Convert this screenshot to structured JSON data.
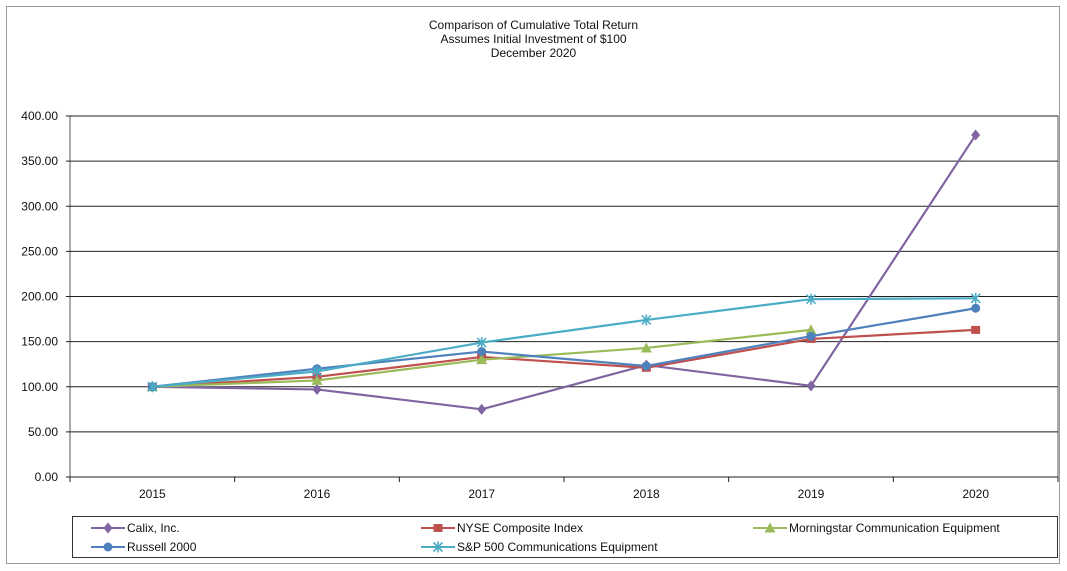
{
  "chart_data": {
    "type": "line",
    "title": [
      "Comparison of Cumulative Total Return",
      "Assumes Initial Investment of $100",
      "December 2020"
    ],
    "categories": [
      "2015",
      "2016",
      "2017",
      "2018",
      "2019",
      "2020"
    ],
    "ylim": [
      0,
      400
    ],
    "yticks": [
      "0.00",
      "50.00",
      "100.00",
      "150.00",
      "200.00",
      "250.00",
      "300.00",
      "350.00",
      "400.00"
    ],
    "grid": true,
    "legend_position": "bottom",
    "series": [
      {
        "name": "Calix, Inc.",
        "color": "#8064a2",
        "marker": "diamond",
        "values": [
          100,
          97,
          75,
          124,
          101,
          379
        ]
      },
      {
        "name": "NYSE Composite Index",
        "color": "#c0504d",
        "marker": "square",
        "values": [
          100,
          111,
          133,
          121,
          153,
          163
        ]
      },
      {
        "name": "Morningstar Communication Equipment",
        "color": "#9bbb59",
        "marker": "triangle",
        "values": [
          100,
          107,
          130,
          143,
          163,
          null
        ]
      },
      {
        "name": "Russell 2000",
        "color": "#4f81bd",
        "marker": "circle",
        "values": [
          100,
          120,
          139,
          123,
          156,
          187
        ]
      },
      {
        "name": "S&P 500 Communications Equipment",
        "color": "#4bacc6",
        "marker": "star",
        "values": [
          100,
          117,
          149,
          174,
          197,
          198
        ]
      }
    ]
  }
}
